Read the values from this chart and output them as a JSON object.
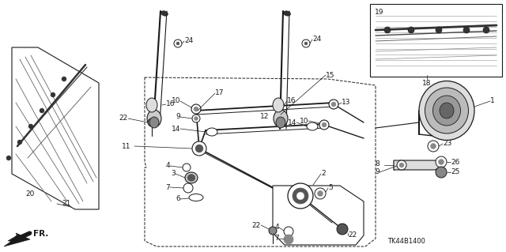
{
  "bg_color": "#ffffff",
  "fig_width": 6.4,
  "fig_height": 3.19,
  "dpi": 100,
  "diagram_code": "TK44B1400",
  "line_color": "#1a1a1a",
  "gray1": "#555555",
  "gray2": "#888888",
  "gray3": "#bbbbbb",
  "font_size": 6.5
}
